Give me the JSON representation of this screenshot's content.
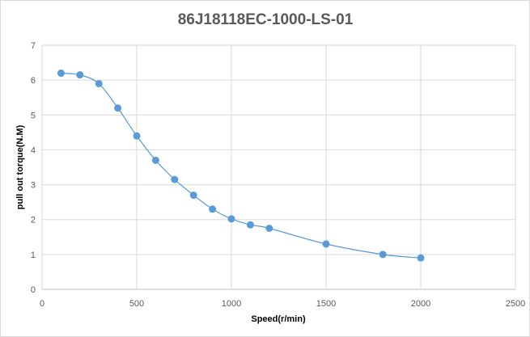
{
  "chart_data": {
    "type": "line",
    "title": "86J18118EC-1000-LS-01",
    "xlabel": "Speed(r/min)",
    "ylabel": "pull out torque(N.M)",
    "xlim": [
      0,
      2500
    ],
    "ylim": [
      0,
      7
    ],
    "xticks": [
      0,
      500,
      1000,
      1500,
      2000,
      2500
    ],
    "yticks": [
      0,
      1,
      2,
      3,
      4,
      5,
      6,
      7
    ],
    "grid": true,
    "smooth": true,
    "series": [
      {
        "color": "#5b9bd5",
        "x": [
          100,
          200,
          300,
          400,
          500,
          600,
          700,
          800,
          900,
          1000,
          1100,
          1200,
          1500,
          1800,
          2000
        ],
        "y": [
          6.2,
          6.15,
          5.9,
          5.2,
          4.4,
          3.7,
          3.15,
          2.7,
          2.3,
          2.02,
          1.85,
          1.75,
          1.3,
          1.0,
          0.9
        ]
      }
    ]
  }
}
